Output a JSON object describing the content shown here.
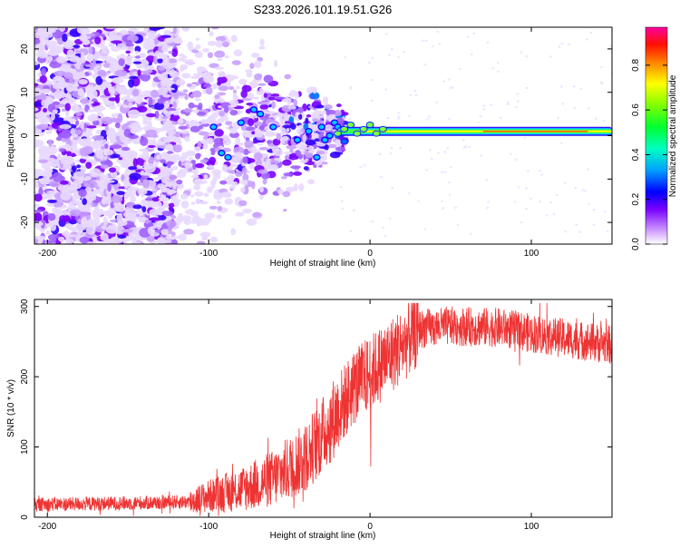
{
  "title": "S233.2026.101.19.51.G26",
  "chart_data": [
    {
      "type": "heatmap",
      "xlabel": "Height of straight line (km)",
      "ylabel": "Frequency (Hz)",
      "xlim": [
        -208,
        150
      ],
      "ylim": [
        -25,
        25
      ],
      "x_ticks": [
        -200,
        -100,
        0,
        100
      ],
      "y_ticks": [
        -20,
        -10,
        0,
        10,
        20
      ],
      "colorbar": {
        "label": "Normalized spectral amplitude",
        "range": [
          0,
          0.97
        ],
        "ticks": [
          "0.0",
          "0.2",
          "0.4",
          "0.6",
          "0.8"
        ],
        "colors": [
          "#ffffff",
          "#7a00ff",
          "#0000ff",
          "#00b0ff",
          "#00ff80",
          "#40ff00",
          "#ffff00",
          "#ff8000",
          "#ff0000",
          "#ff00a0"
        ]
      },
      "ridge": {
        "description": "strong narrow line near 1 Hz from ~-20 km to 150 km",
        "x_start": -20,
        "x_end": 150,
        "freq": 1
      }
    },
    {
      "type": "line",
      "xlabel": "Height of straight line (km)",
      "ylabel": "SNR (10 * v/v)",
      "xlim": [
        -208,
        150
      ],
      "ylim": [
        0,
        310
      ],
      "x_ticks": [
        -200,
        -100,
        0,
        100
      ],
      "y_ticks": [
        0,
        100,
        200,
        300
      ],
      "color": "#ee3333",
      "trend": [
        [
          -208,
          18
        ],
        [
          -150,
          20
        ],
        [
          -112,
          22
        ],
        [
          -100,
          30
        ],
        [
          -80,
          40
        ],
        [
          -60,
          55
        ],
        [
          -40,
          85
        ],
        [
          -30,
          115
        ],
        [
          -20,
          150
        ],
        [
          -10,
          185
        ],
        [
          0,
          205
        ],
        [
          10,
          225
        ],
        [
          20,
          245
        ],
        [
          30,
          268
        ],
        [
          50,
          272
        ],
        [
          80,
          270
        ],
        [
          100,
          262
        ],
        [
          120,
          255
        ],
        [
          150,
          245
        ]
      ]
    }
  ]
}
